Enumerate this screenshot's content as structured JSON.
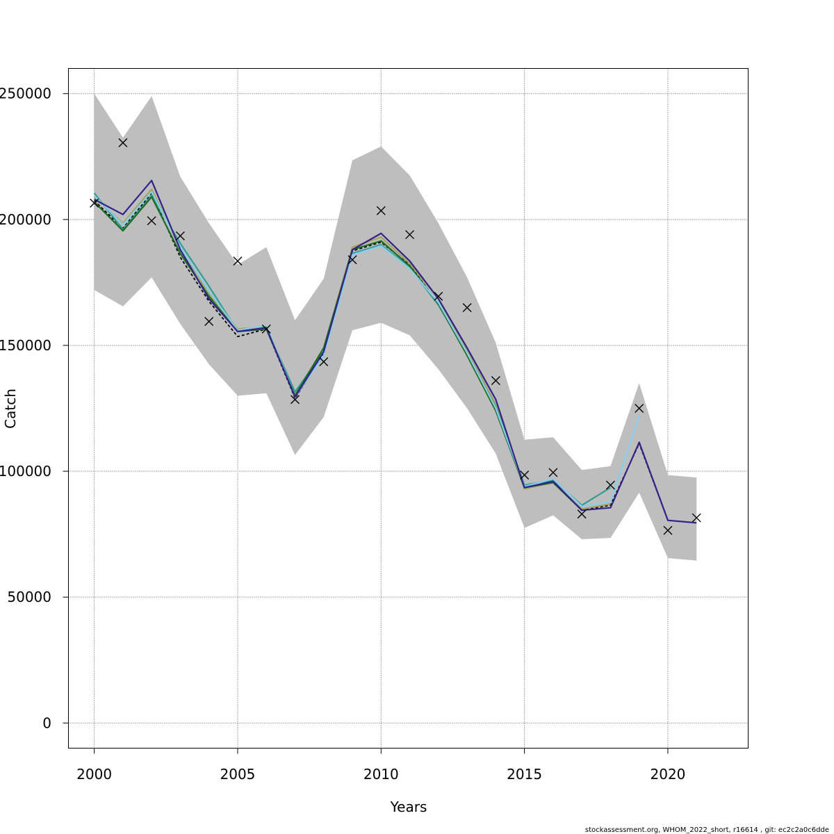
{
  "chart_data": {
    "type": "line",
    "title": "",
    "xlabel": "Years",
    "ylabel": "Catch",
    "xlim": [
      1999.1,
      2022.8
    ],
    "ylim": [
      -10000,
      260000
    ],
    "xticks": [
      2000,
      2005,
      2010,
      2015,
      2020
    ],
    "yticks": [
      0,
      50000,
      100000,
      150000,
      200000,
      250000
    ],
    "x_tick_labels": [
      "2000",
      "2005",
      "2010",
      "2015",
      "2020"
    ],
    "y_tick_labels": [
      "0",
      "50000",
      "100000",
      "150000",
      "200000",
      "250000"
    ],
    "grid": true,
    "legend": "none",
    "band_color": "#bebebe",
    "confidence_band": {
      "x": [
        2000,
        2001,
        2002,
        2003,
        2004,
        2005,
        2006,
        2007,
        2008,
        2009,
        2010,
        2011,
        2012,
        2013,
        2014,
        2015,
        2016,
        2017,
        2018,
        2019,
        2020,
        2021
      ],
      "lower": [
        172000,
        165500,
        177000,
        158500,
        142500,
        130000,
        131000,
        106500,
        121500,
        156000,
        159000,
        154000,
        140500,
        125000,
        107000,
        77500,
        82500,
        73000,
        73500,
        91500,
        65500,
        64500
      ],
      "upper": [
        250000,
        232500,
        249000,
        217000,
        198500,
        182000,
        189000,
        160000,
        176500,
        223500,
        229000,
        217500,
        198500,
        177000,
        151000,
        112500,
        113500,
        100500,
        102000,
        135000,
        98500,
        97500
      ]
    },
    "observations": {
      "marker": "x",
      "x": [
        2000,
        2001,
        2002,
        2003,
        2004,
        2005,
        2006,
        2007,
        2008,
        2009,
        2010,
        2011,
        2012,
        2013,
        2014,
        2015,
        2016,
        2017,
        2018,
        2019,
        2020,
        2021
      ],
      "y": [
        206500,
        230500,
        199500,
        193500,
        159500,
        183500,
        156500,
        128500,
        143500,
        184000,
        203500,
        194000,
        169500,
        165000,
        136000,
        98500,
        99500,
        83000,
        94500,
        125000,
        76500,
        81500
      ]
    },
    "series": [
      {
        "color": "#000000",
        "dashed": true,
        "x": [
          2000,
          2001,
          2002,
          2003,
          2004,
          2005,
          2006,
          2007,
          2008,
          2009,
          2010,
          2011,
          2012,
          2013,
          2014,
          2015,
          2016,
          2017,
          2018,
          2019,
          2020,
          2021
        ],
        "values": [
          207500,
          196500,
          210500,
          185000,
          167500,
          153500,
          156500,
          129000,
          146500,
          187500,
          191000,
          182000,
          166500,
          147500,
          126500,
          93500,
          95500,
          84500,
          86500,
          111000,
          80500,
          79500
        ]
      },
      {
        "color": "#a6a35e",
        "x": [
          2000,
          2001,
          2002,
          2003,
          2004,
          2005,
          2006,
          2007,
          2008,
          2009,
          2010,
          2011,
          2012,
          2013,
          2014,
          2015,
          2016,
          2017,
          2018
        ],
        "values": [
          209000,
          198500,
          212000,
          188500,
          170500,
          156500,
          157500,
          130500,
          149000,
          189000,
          193000,
          182500,
          168500,
          148000,
          126500,
          93000,
          95500,
          85000,
          87000
        ]
      },
      {
        "color": "#2e9e93",
        "x": [
          2000,
          2001,
          2002,
          2003,
          2004,
          2005,
          2006,
          2007,
          2008,
          2009,
          2010,
          2011,
          2012,
          2013,
          2014,
          2015,
          2016,
          2017,
          2018
        ],
        "values": [
          210500,
          196000,
          209500,
          190500,
          173500,
          155500,
          157000,
          131500,
          147500,
          186500,
          190000,
          181000,
          166000,
          146500,
          125500,
          94500,
          96500,
          86500,
          93500
        ]
      },
      {
        "color": "#1f6b21",
        "x": [
          2000,
          2001,
          2002,
          2003,
          2004,
          2005,
          2006,
          2007,
          2008,
          2009,
          2010,
          2011,
          2012,
          2013,
          2014,
          2015,
          2016,
          2017
        ],
        "values": [
          207000,
          195500,
          209000,
          186500,
          169500,
          155500,
          156500,
          130000,
          149000,
          188000,
          191500,
          181500,
          166500,
          146000,
          124000,
          93500,
          95500,
          84500
        ]
      },
      {
        "color": "#87ceeb",
        "x": [
          2000,
          2001,
          2002,
          2003,
          2004,
          2005,
          2006,
          2007,
          2008,
          2009,
          2010,
          2011,
          2012,
          2013,
          2014,
          2015,
          2016,
          2017,
          2018,
          2019
        ],
        "values": [
          209500,
          198000,
          211000,
          189000,
          171500,
          156000,
          158000,
          129500,
          146000,
          186000,
          189500,
          180500,
          167000,
          147000,
          125000,
          94000,
          97000,
          86000,
          88000,
          122000
        ]
      },
      {
        "color": "#332288",
        "x": [
          2000,
          2001,
          2002,
          2003,
          2004,
          2005,
          2006,
          2007,
          2008,
          2009,
          2010,
          2011,
          2012,
          2013,
          2014,
          2015,
          2016,
          2017,
          2018,
          2019,
          2020,
          2021
        ],
        "values": [
          208000,
          202000,
          215500,
          188000,
          168500,
          155500,
          157000,
          129500,
          147500,
          188000,
          194500,
          183500,
          168500,
          149000,
          128500,
          93500,
          96000,
          84500,
          85500,
          111500,
          80500,
          79500
        ]
      }
    ]
  },
  "footer": "stockassessment.org, WHOM_2022_short, r16614 , git: ec2c2a0c6dde"
}
